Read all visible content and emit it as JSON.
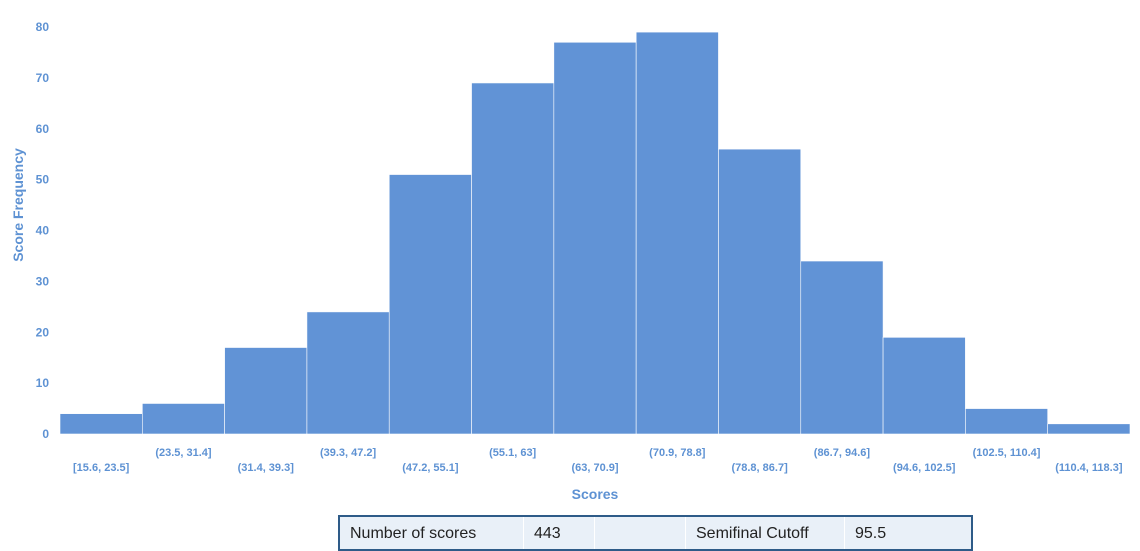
{
  "chart_data": {
    "type": "bar",
    "histogram": true,
    "categories": [
      "[15.6, 23.5]",
      "(23.5, 31.4]",
      "(31.4, 39.3]",
      "(39.3, 47.2]",
      "(47.2, 55.1]",
      "(55.1, 63]",
      "(63, 70.9]",
      "(70.9, 78.8]",
      "(78.8, 86.7]",
      "(86.7, 94.6]",
      "(94.6, 102.5]",
      "(102.5, 110.4]",
      "(110.4, 118.3]"
    ],
    "values": [
      4,
      6,
      17,
      24,
      51,
      69,
      77,
      79,
      56,
      34,
      19,
      5,
      2
    ],
    "xlabel": "Scores",
    "ylabel": "Score Frequency",
    "ylim": [
      0,
      80
    ],
    "yticks": [
      0,
      10,
      20,
      30,
      40,
      50,
      60,
      70,
      80
    ],
    "grid": false,
    "bar_color": "#6193d6",
    "label_color": "#5e92d3"
  },
  "stats_table": {
    "cells": [
      "Number of scores",
      "443",
      "",
      "Semifinal Cutoff",
      "95.5"
    ]
  }
}
